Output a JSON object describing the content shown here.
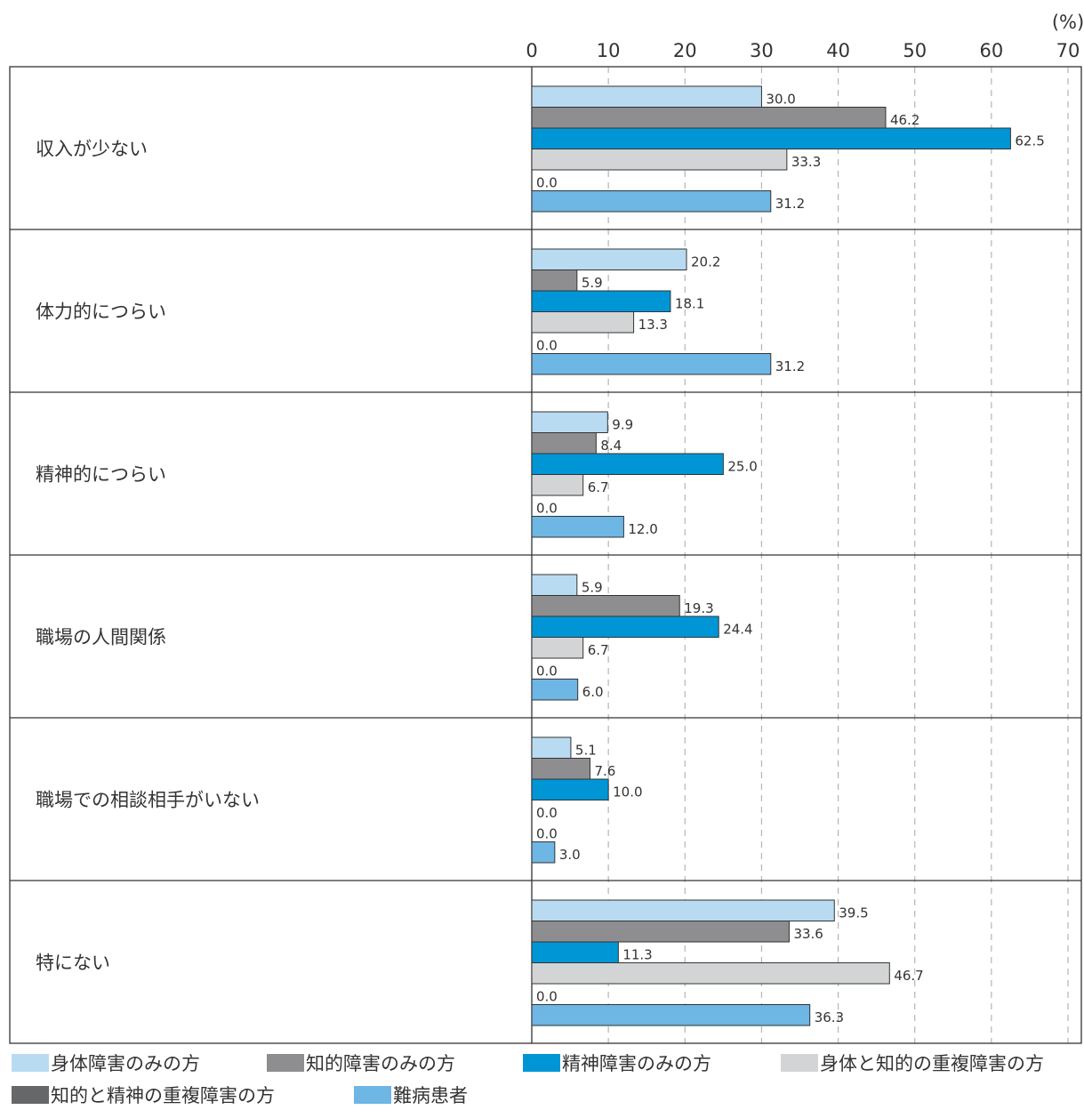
{
  "chart_data": {
    "type": "bar",
    "orientation": "horizontal",
    "unit_label": "(%)",
    "xlim": [
      0,
      70
    ],
    "x_ticks": [
      "0",
      "10",
      "20",
      "30",
      "40",
      "50",
      "60",
      "70"
    ],
    "grid": "dashed vertical",
    "legend_position": "bottom",
    "categories": [
      "収入が少ない",
      "体力的につらい",
      "精神的につらい",
      "職場の人間関係",
      "職場での相談相手がいない",
      "特にない"
    ],
    "series": [
      {
        "name": "身体障害のみの方",
        "color": "#b9dbf1",
        "values": [
          30.0,
          20.2,
          9.9,
          5.9,
          5.1,
          39.5
        ],
        "labels": [
          "30.0",
          "20.2",
          "9.9",
          "5.9",
          "5.1",
          "39.5"
        ]
      },
      {
        "name": "知的障害のみの方",
        "color": "#8e8e90",
        "values": [
          46.2,
          5.9,
          8.4,
          19.3,
          7.6,
          33.6
        ],
        "labels": [
          "46.2",
          "5.9",
          "8.4",
          "19.3",
          "7.6",
          "33.6"
        ]
      },
      {
        "name": "精神障害のみの方",
        "color": "#0096d6",
        "values": [
          62.5,
          18.1,
          25.0,
          24.4,
          10.0,
          11.3
        ],
        "labels": [
          "62.5",
          "18.1",
          "25.0",
          "24.4",
          "10.0",
          "11.3"
        ]
      },
      {
        "name": "身体と知的の重複障害の方",
        "color": "#d3d4d5",
        "values": [
          33.3,
          13.3,
          6.7,
          6.7,
          0.0,
          46.7
        ],
        "labels": [
          "33.3",
          "13.3",
          "6.7",
          "6.7",
          "0.0",
          "46.7"
        ]
      },
      {
        "name": "知的と精神の重複障害の方",
        "color": "#666769",
        "values": [
          0.0,
          0.0,
          0.0,
          0.0,
          0.0,
          0.0
        ],
        "labels": [
          "0.0",
          "0.0",
          "0.0",
          "0.0",
          "0.0",
          "0.0"
        ]
      },
      {
        "name": "難病患者",
        "color": "#6eb6e4",
        "values": [
          31.2,
          31.2,
          12.0,
          6.0,
          3.0,
          36.3
        ],
        "labels": [
          "31.2",
          "31.2",
          "12.0",
          "6.0",
          "3.0",
          "36.3"
        ]
      }
    ]
  }
}
